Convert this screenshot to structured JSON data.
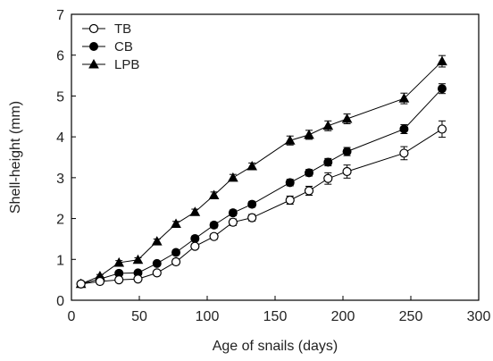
{
  "chart_data": {
    "type": "line",
    "title": "",
    "xlabel": "Age of snails (days)",
    "ylabel": "Shell-height (mm)",
    "xlim": [
      0,
      300
    ],
    "ylim": [
      0,
      7
    ],
    "xticks": [
      0,
      50,
      100,
      150,
      200,
      250,
      300
    ],
    "yticks": [
      0,
      1,
      2,
      3,
      4,
      5,
      6,
      7
    ],
    "grid": false,
    "legend_position": "top-left",
    "x": [
      7,
      21,
      35,
      49,
      63,
      77,
      91,
      105,
      119,
      133,
      161,
      175,
      189,
      203,
      245,
      273
    ],
    "series": [
      {
        "name": "TB",
        "marker": "circle-open",
        "color": "#000000",
        "values": [
          0.4,
          0.46,
          0.5,
          0.52,
          0.67,
          0.94,
          1.32,
          1.56,
          1.91,
          2.02,
          2.45,
          2.68,
          2.98,
          3.15,
          3.6,
          4.19
        ],
        "errors": [
          0.05,
          0.04,
          0.05,
          0.05,
          0.05,
          0.06,
          0.06,
          0.07,
          0.08,
          0.08,
          0.1,
          0.11,
          0.14,
          0.16,
          0.16,
          0.2
        ]
      },
      {
        "name": "CB",
        "marker": "circle-filled",
        "color": "#000000",
        "values": [
          0.4,
          0.52,
          0.66,
          0.67,
          0.9,
          1.17,
          1.51,
          1.84,
          2.14,
          2.35,
          2.88,
          3.12,
          3.38,
          3.64,
          4.19,
          5.18
        ],
        "errors": [
          0.04,
          0.04,
          0.05,
          0.05,
          0.05,
          0.06,
          0.06,
          0.07,
          0.07,
          0.07,
          0.08,
          0.08,
          0.09,
          0.1,
          0.11,
          0.12
        ]
      },
      {
        "name": "LPB",
        "marker": "triangle-filled",
        "color": "#000000",
        "values": [
          0.4,
          0.59,
          0.92,
          0.99,
          1.44,
          1.87,
          2.16,
          2.57,
          3.0,
          3.28,
          3.91,
          4.05,
          4.27,
          4.44,
          4.94,
          5.85
        ],
        "errors": [
          0.04,
          0.04,
          0.05,
          0.05,
          0.06,
          0.06,
          0.07,
          0.08,
          0.08,
          0.08,
          0.11,
          0.11,
          0.12,
          0.12,
          0.13,
          0.14
        ]
      }
    ]
  }
}
